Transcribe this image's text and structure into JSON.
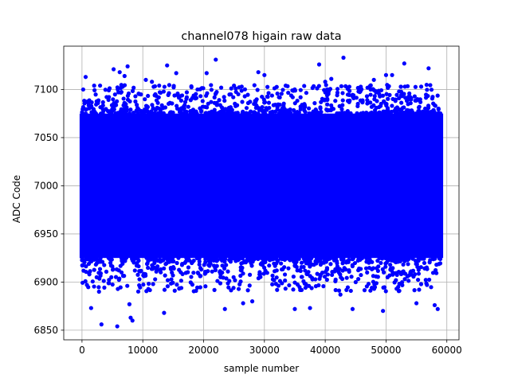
{
  "chart_data": {
    "type": "scatter",
    "title": "channel078 higain raw data",
    "xlabel": "sample number",
    "ylabel": "ADC Code",
    "xlim": [
      -3000,
      62000
    ],
    "ylim": [
      6840,
      7145
    ],
    "xticks": [
      0,
      10000,
      20000,
      30000,
      40000,
      50000,
      60000
    ],
    "yticks": [
      6850,
      6900,
      6950,
      7000,
      7050,
      7100
    ],
    "xtick_labels": [
      "0",
      "10000",
      "20000",
      "30000",
      "40000",
      "50000",
      "60000"
    ],
    "ytick_labels": [
      "6850",
      "6900",
      "6950",
      "7000",
      "7050",
      "7100"
    ],
    "grid": true,
    "marker_color": "#0000ff",
    "series": [
      {
        "x_start": 0,
        "x_end": 59000,
        "dense_range": [
          6925,
          7075
        ],
        "points": [
          [
            200,
            7100
          ],
          [
            600,
            7113
          ],
          [
            1500,
            6873
          ],
          [
            2000,
            7104
          ],
          [
            3200,
            6856
          ],
          [
            5200,
            7121
          ],
          [
            5800,
            6854
          ],
          [
            6200,
            7118
          ],
          [
            7000,
            7114
          ],
          [
            7500,
            7124
          ],
          [
            7800,
            6877
          ],
          [
            8000,
            6863
          ],
          [
            8300,
            6860
          ],
          [
            10500,
            7110
          ],
          [
            11500,
            7108
          ],
          [
            13500,
            6868
          ],
          [
            14000,
            7125
          ],
          [
            15500,
            7117
          ],
          [
            19000,
            7100
          ],
          [
            20500,
            7117
          ],
          [
            22000,
            7131
          ],
          [
            23500,
            6872
          ],
          [
            25000,
            7104
          ],
          [
            26500,
            6878
          ],
          [
            28000,
            6880
          ],
          [
            29000,
            7118
          ],
          [
            30000,
            7115
          ],
          [
            33500,
            7104
          ],
          [
            35000,
            6872
          ],
          [
            37500,
            6873
          ],
          [
            39000,
            7126
          ],
          [
            40000,
            7108
          ],
          [
            41000,
            7111
          ],
          [
            42500,
            6887
          ],
          [
            43000,
            7133
          ],
          [
            44500,
            6872
          ],
          [
            48000,
            7110
          ],
          [
            49500,
            6870
          ],
          [
            50000,
            7115
          ],
          [
            51000,
            7115
          ],
          [
            53000,
            7127
          ],
          [
            55000,
            6878
          ],
          [
            57000,
            7122
          ],
          [
            58000,
            6876
          ],
          [
            58500,
            6872
          ]
        ]
      }
    ]
  }
}
